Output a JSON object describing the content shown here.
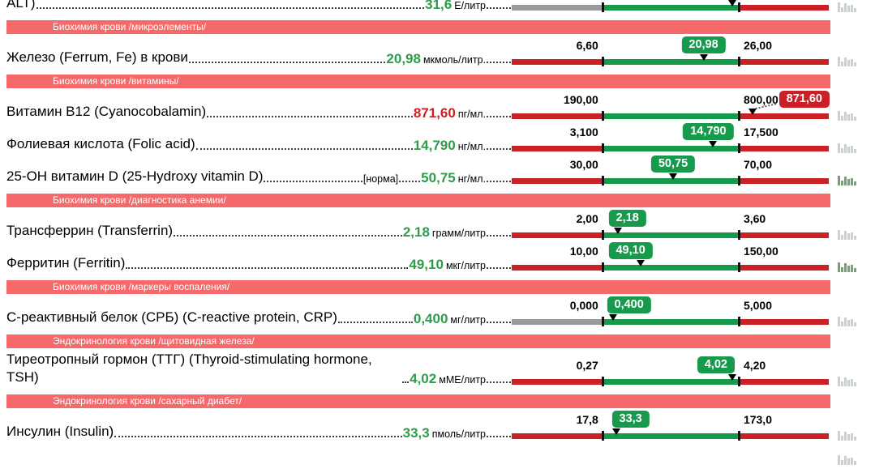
{
  "colors": {
    "header_bg": "#f5696b",
    "bar_red": "#cc2027",
    "bar_green": "#179a4c",
    "bar_gray": "#9a9a9a",
    "value_green": "#2f9b4c",
    "value_red": "#cb2026",
    "spark_light": "#c9d3c9",
    "spark_dark": "#74a476"
  },
  "spark_heights": [
    12,
    6,
    11,
    8,
    9,
    5
  ],
  "blocks": [
    {
      "type": "row",
      "clipped": true,
      "name": "ALT)",
      "value": "31,6",
      "unit": "Е/литр",
      "value_color": "green",
      "bar": {
        "low": "",
        "high": "",
        "left_seg": "gray",
        "marker_pct": 69.6,
        "badge": null
      },
      "spark": "light"
    },
    {
      "type": "header",
      "label": "Биохимия крови /микроэлементы/"
    },
    {
      "type": "row",
      "name": "Железо (Ferrum, Fe) в крови",
      "value": "20,98",
      "unit": "мкмоль/литр.",
      "value_color": "green",
      "bar": {
        "low": "6,60",
        "high": "26,00",
        "left_seg": "red",
        "marker_pct": 60.5,
        "badge": {
          "text": "20,98",
          "color": "green",
          "align": "center",
          "pct": 60.5
        }
      },
      "spark": "light"
    },
    {
      "type": "header",
      "label": "Биохимия крови /витамины/"
    },
    {
      "type": "row",
      "name": "Витамин B12 (Cyanocobalamin)",
      "value": "871,60",
      "unit": "пг/мл.",
      "value_color": "red",
      "bar": {
        "low": "190,00",
        "high": "800,00",
        "left_seg": "red",
        "marker_pct": 76,
        "badge": {
          "text": "871,60",
          "color": "red",
          "align": "end",
          "pct": 98
        },
        "connector": true
      },
      "spark": "light"
    },
    {
      "type": "row",
      "name": "Фолиевая кислота (Folic acid)",
      "value": "14,790",
      "unit": "нг/мл.",
      "value_color": "green",
      "bar": {
        "low": "3,100",
        "high": "17,500",
        "left_seg": "red",
        "marker_pct": 63.4,
        "badge": {
          "text": "14,790",
          "color": "green",
          "align": "center",
          "pct": 62
        }
      },
      "spark": "light"
    },
    {
      "type": "row",
      "name": "25-OH витамин D (25-Hydroxy vitamin D)",
      "norm_note": "[норма]",
      "value": "50,75",
      "unit": "нг/мл.",
      "value_color": "green",
      "bar": {
        "low": "30,00",
        "high": "70,00",
        "left_seg": "red",
        "marker_pct": 50.9,
        "badge": {
          "text": "50,75",
          "color": "green",
          "align": "center",
          "pct": 50.9
        }
      },
      "spark": "dark"
    },
    {
      "type": "header",
      "label": "Биохимия крови /диагностика анемии/"
    },
    {
      "type": "row",
      "name": "Трансферрин (Transferrin)",
      "value": "2,18",
      "unit": "грамм/литр",
      "value_color": "green",
      "bar": {
        "low": "2,00",
        "high": "3,60",
        "left_seg": "red",
        "marker_pct": 33.5,
        "badge": {
          "text": "2,18",
          "color": "green",
          "align": "center",
          "pct": 36.5
        }
      },
      "spark": "light"
    },
    {
      "type": "row",
      "name": "Ферритин (Ferritin)",
      "value": "49,10",
      "unit": "мкг/литр",
      "value_color": "green",
      "bar": {
        "low": "10,00",
        "high": "150,00",
        "left_seg": "red",
        "marker_pct": 40.7,
        "badge": {
          "text": "49,10",
          "color": "green",
          "align": "center",
          "pct": 37.5
        }
      },
      "spark": "dark"
    },
    {
      "type": "header",
      "label": "Биохимия крови /маркеры воспаления/"
    },
    {
      "type": "row",
      "name": "С-реактивный белок (СРБ) (C-reactive protein, CRP)",
      "value": "0,400",
      "unit": "мг/литр",
      "value_color": "green",
      "bar": {
        "low": "0,000",
        "high": "5,000",
        "left_seg": "gray",
        "marker_pct": 31.9,
        "badge": {
          "text": "0,400",
          "color": "green",
          "align": "center",
          "pct": 37
        }
      },
      "spark": "light"
    },
    {
      "type": "header",
      "label": "Эндокринология крови /щитовидная железа/"
    },
    {
      "type": "row",
      "name": "Тиреотропный гормон (ТТГ) (Thyroid-stimulating hormone, TSH)",
      "value": "4,02",
      "unit": "мМЕ/литр",
      "value_color": "green",
      "bar": {
        "low": "0,27",
        "high": "4,20",
        "left_seg": "red",
        "marker_pct": 69.5,
        "badge": {
          "text": "4,02",
          "color": "green",
          "align": "left",
          "pct": 69.5
        }
      },
      "spark": "light"
    },
    {
      "type": "header",
      "label": "Эндокринология крови /сахарный диабет/"
    },
    {
      "type": "row",
      "name": "Инсулин (Insulin)",
      "value": "33,3",
      "unit": "пмоль/литр",
      "value_color": "green",
      "bar": {
        "low": "17,8",
        "high": "173,0",
        "left_seg": "red",
        "marker_pct": 33,
        "badge": {
          "text": "33,3",
          "color": "green",
          "align": "center",
          "pct": 37.5
        }
      },
      "spark": "light"
    },
    {
      "type": "spark_only",
      "spark": "light"
    }
  ]
}
